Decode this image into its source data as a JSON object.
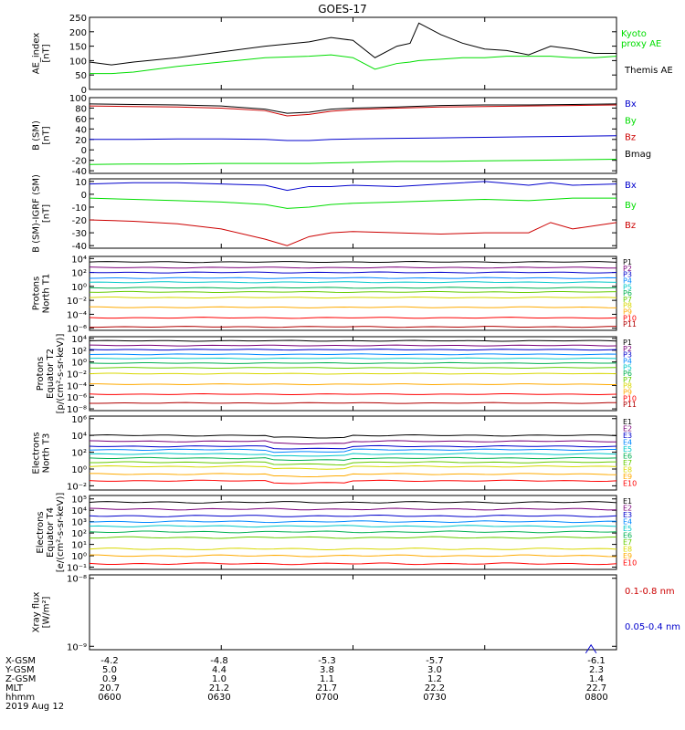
{
  "title": "GOES-17",
  "colors": {
    "black": "#000000",
    "green": "#00dd00",
    "blue": "#0000cc",
    "red": "#cc0000",
    "p": [
      "#000000",
      "#7a007a",
      "#0000cc",
      "#0088ff",
      "#00c8c8",
      "#00b050",
      "#66cc00",
      "#d8d800",
      "#ffaa00",
      "#ff0000",
      "#b00000"
    ],
    "e": [
      "#000000",
      "#7a007a",
      "#0000cc",
      "#0088ff",
      "#00c8c8",
      "#00b050",
      "#66cc00",
      "#d8d800",
      "#ffaa00",
      "#ff0000",
      "#b00000"
    ]
  },
  "footer": {
    "row_labels": [
      "X-GSM",
      "Y-GSM",
      "Z-GSM",
      "MLT",
      "hhmm"
    ],
    "date": "2019 Aug 12",
    "columns": [
      {
        "vals": [
          "-4.2",
          "5.0",
          "0.9",
          "20.7",
          "0600"
        ]
      },
      {
        "vals": [
          "-4.8",
          "4.4",
          "1.0",
          "21.2",
          "0630"
        ]
      },
      {
        "vals": [
          "-5.3",
          "3.8",
          "1.1",
          "21.7",
          "0700"
        ]
      },
      {
        "vals": [
          "-5.7",
          "3.0",
          "1.2",
          "22.2",
          "0730"
        ]
      },
      {
        "vals": [
          "-6.1",
          "2.3",
          "1.4",
          "22.7",
          "0800"
        ]
      }
    ]
  },
  "chart_data": [
    {
      "type": "line",
      "name": "ae",
      "ylabel": "AE_index\n[nT]",
      "ylim": [
        0,
        250
      ],
      "ticks": [
        0,
        50,
        100,
        150,
        200,
        250
      ],
      "legend": [
        {
          "text": "Kyoto",
          "color": "green"
        },
        {
          "text": "proxy AE",
          "color": "green"
        },
        {
          "text": "Themis AE",
          "color": "black"
        }
      ],
      "x": [
        0,
        5,
        10,
        20,
        30,
        40,
        50,
        55,
        60,
        65,
        70,
        73,
        75,
        80,
        85,
        90,
        95,
        100,
        105,
        110,
        115,
        120
      ],
      "series": [
        {
          "name": "Themis AE",
          "color": "black",
          "values": [
            95,
            85,
            95,
            110,
            130,
            150,
            165,
            180,
            170,
            110,
            150,
            160,
            230,
            190,
            160,
            140,
            135,
            120,
            150,
            140,
            125,
            125
          ]
        },
        {
          "name": "Kyoto proxy AE",
          "color": "green",
          "values": [
            55,
            55,
            60,
            80,
            95,
            110,
            115,
            120,
            110,
            70,
            90,
            95,
            100,
            105,
            110,
            110,
            115,
            115,
            115,
            110,
            110,
            115
          ]
        }
      ]
    },
    {
      "type": "line",
      "name": "bsm",
      "ylabel": "B (SM)\n[nT]",
      "ylim": [
        -45,
        100
      ],
      "ticks": [
        -40,
        -20,
        0,
        20,
        40,
        60,
        80,
        100
      ],
      "legend": [
        {
          "text": "Bx",
          "color": "blue"
        },
        {
          "text": "By",
          "color": "green"
        },
        {
          "text": "Bz",
          "color": "red"
        },
        {
          "text": "Bmag",
          "color": "black"
        }
      ],
      "x": [
        0,
        10,
        20,
        30,
        40,
        45,
        50,
        55,
        60,
        70,
        80,
        90,
        100,
        110,
        120
      ],
      "series": [
        {
          "name": "Bmag",
          "color": "black",
          "values": [
            88,
            87,
            86,
            84,
            78,
            70,
            72,
            78,
            80,
            82,
            85,
            86,
            86,
            87,
            88
          ]
        },
        {
          "name": "Bz",
          "color": "red",
          "values": [
            84,
            83,
            82,
            80,
            75,
            65,
            68,
            74,
            77,
            80,
            82,
            83,
            84,
            85,
            86
          ]
        },
        {
          "name": "Bx",
          "color": "blue",
          "values": [
            20,
            20,
            21,
            21,
            20,
            18,
            18,
            20,
            21,
            22,
            23,
            24,
            25,
            26,
            27
          ]
        },
        {
          "name": "By",
          "color": "green",
          "values": [
            -28,
            -27,
            -27,
            -26,
            -26,
            -26,
            -26,
            -25,
            -24,
            -22,
            -22,
            -21,
            -20,
            -19,
            -18
          ]
        }
      ]
    },
    {
      "type": "line",
      "name": "bigrf",
      "ylabel": "B (SM)-IGRF (SM)\n[nT]",
      "ylim": [
        -42,
        12
      ],
      "ticks": [
        -40,
        -30,
        -20,
        -10,
        0,
        10
      ],
      "legend": [
        {
          "text": "Bx",
          "color": "blue"
        },
        {
          "text": "By",
          "color": "green"
        },
        {
          "text": "Bz",
          "color": "red"
        }
      ],
      "x": [
        0,
        10,
        20,
        30,
        40,
        45,
        50,
        55,
        60,
        70,
        80,
        90,
        100,
        105,
        110,
        120
      ],
      "series": [
        {
          "name": "Bx",
          "color": "blue",
          "values": [
            8,
            9,
            9,
            8,
            7,
            3,
            6,
            6,
            7,
            6,
            8,
            10,
            7,
            9,
            7,
            8
          ]
        },
        {
          "name": "By",
          "color": "green",
          "values": [
            -3,
            -4,
            -5,
            -6,
            -8,
            -11,
            -10,
            -8,
            -7,
            -6,
            -5,
            -4,
            -5,
            -4,
            -3,
            -3
          ]
        },
        {
          "name": "Bz",
          "color": "red",
          "values": [
            -20,
            -21,
            -23,
            -27,
            -35,
            -40,
            -33,
            -30,
            -29,
            -30,
            -31,
            -30,
            -30,
            -22,
            -27,
            -22
          ]
        }
      ]
    },
    {
      "type": "line",
      "name": "pn",
      "log": true,
      "ylabel": "Protons\nNorth T1",
      "ylim": [
        -6.3,
        4.3
      ],
      "ticks": [
        4,
        2,
        0,
        -2,
        -4,
        -6
      ],
      "channels": [
        "P1",
        "P2",
        "P3",
        "P4",
        "P5",
        "P6",
        "P7",
        "P8",
        "P9",
        "P10",
        "P11"
      ],
      "levels": [
        3.5,
        2.7,
        2.0,
        1.2,
        0.6,
        -0.2,
        -0.8,
        -1.6,
        -3.0,
        -4.5,
        -5.8
      ]
    },
    {
      "type": "line",
      "name": "pe",
      "log": true,
      "ylabel": "Protons\nEquator T2\n[p/(cm²-s-sr-keV)]",
      "ylim": [
        -8.3,
        4.3
      ],
      "ticks": [
        4,
        2,
        0,
        -2,
        -4,
        -6,
        -8
      ],
      "channels": [
        "P1",
        "P2",
        "P3",
        "P4",
        "P5",
        "P6",
        "P7",
        "P8",
        "P9",
        "P10",
        "P11"
      ],
      "levels": [
        3.6,
        2.8,
        2.1,
        1.3,
        0.6,
        -0.2,
        -1.0,
        -2.0,
        -3.8,
        -5.5,
        -7.0
      ]
    },
    {
      "type": "line",
      "name": "en",
      "log": true,
      "ylabel": "Electrons\nNorth T3",
      "ylim": [
        -2.5,
        6.3
      ],
      "ticks": [
        6,
        4,
        2,
        0,
        -2
      ],
      "channels": [
        "E1",
        "E2",
        "E3",
        "E4",
        "E5",
        "E6",
        "E7",
        "E8",
        "E9",
        "E10"
      ],
      "levels": [
        4.0,
        3.3,
        2.7,
        2.3,
        1.8,
        1.3,
        0.8,
        0.3,
        -0.6,
        -1.4
      ]
    },
    {
      "type": "line",
      "name": "ee",
      "log": true,
      "ylabel": "Electrons\nEquator T4\n[e/(cm²-s-sr-keV)]",
      "ylim": [
        -1.2,
        5.3
      ],
      "ticks": [
        5,
        4,
        3,
        2,
        1,
        0,
        -1
      ],
      "channels": [
        "E1",
        "E2",
        "E3",
        "E4",
        "E5",
        "E6",
        "E7",
        "E8",
        "E9",
        "E10"
      ],
      "levels": [
        4.7,
        4.1,
        3.5,
        3.0,
        2.6,
        2.1,
        1.6,
        0.6,
        0.0,
        -0.7
      ]
    },
    {
      "type": "line",
      "name": "xray",
      "log": true,
      "ylabel": "Xray flux\n[W/m²]",
      "ylim": [
        -9.05,
        -7.95
      ],
      "ticks": [
        -8,
        -9
      ],
      "legend": [
        {
          "text": "0.1-0.8 nm",
          "color": "red"
        },
        {
          "text": "0.05-0.4 nm",
          "color": "blue"
        }
      ],
      "x": [
        113,
        114.2,
        115.4
      ],
      "series": [
        {
          "name": "0.05-0.4 nm",
          "color": "blue",
          "values": [
            -9.1,
            -8.98,
            -9.1
          ]
        }
      ]
    }
  ]
}
